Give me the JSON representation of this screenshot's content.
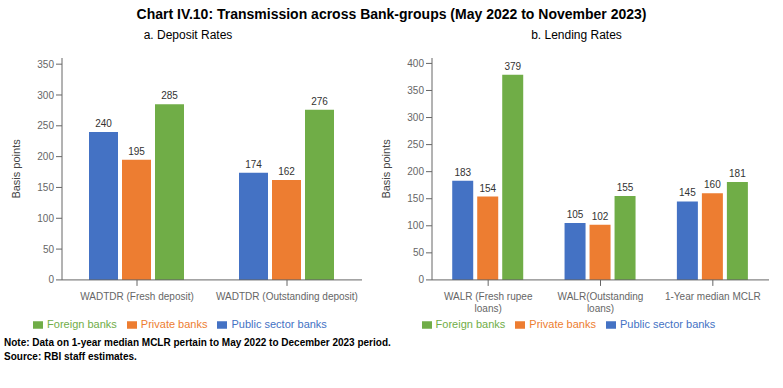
{
  "title": "Chart IV.10: Transmission across Bank-groups (May 2022 to November 2023)",
  "annotations": [
    "Note: Data on 1-year median MCLR pertain to May 2022 to December 2023 period.",
    "Source: RBI staff estimates."
  ],
  "chart_data": [
    {
      "type": "bar",
      "title": "a. Deposit Rates",
      "y_label": "Basis points",
      "categories": [
        "WADTDR (Fresh deposit)",
        "WADTDR (Outstanding deposit)"
      ],
      "series": [
        {
          "name": "Public sector banks",
          "color": "#4472C4",
          "values": [
            240,
            174
          ]
        },
        {
          "name": "Private banks",
          "color": "#ED7D31",
          "values": [
            195,
            162
          ]
        },
        {
          "name": "Foreign banks",
          "color": "#70AD47",
          "values": [
            285,
            276
          ]
        }
      ],
      "ylim": [
        0,
        360
      ],
      "yticks": [
        0,
        50,
        100,
        150,
        200,
        250,
        300,
        350
      ],
      "data_labels": true,
      "legend": "bottom",
      "grid": false
    },
    {
      "type": "bar",
      "title": "b. Lending Rates",
      "y_label": "Basis points",
      "categories": [
        "WALR (Fresh rupee\nloans)",
        "WALR(Outstanding\nloans)",
        "1-Year median MCLR"
      ],
      "series": [
        {
          "name": "Public sector banks",
          "color": "#4472C4",
          "values": [
            183,
            105,
            145
          ]
        },
        {
          "name": "Private banks",
          "color": "#ED7D31",
          "values": [
            154,
            102,
            160
          ]
        },
        {
          "name": "Foreign banks",
          "color": "#70AD47",
          "values": [
            379,
            155,
            181
          ]
        }
      ],
      "ylim": [
        0,
        410
      ],
      "yticks": [
        0,
        50,
        100,
        150,
        200,
        250,
        300,
        350,
        400
      ],
      "data_labels": true,
      "legend": "bottom",
      "grid": false
    }
  ]
}
